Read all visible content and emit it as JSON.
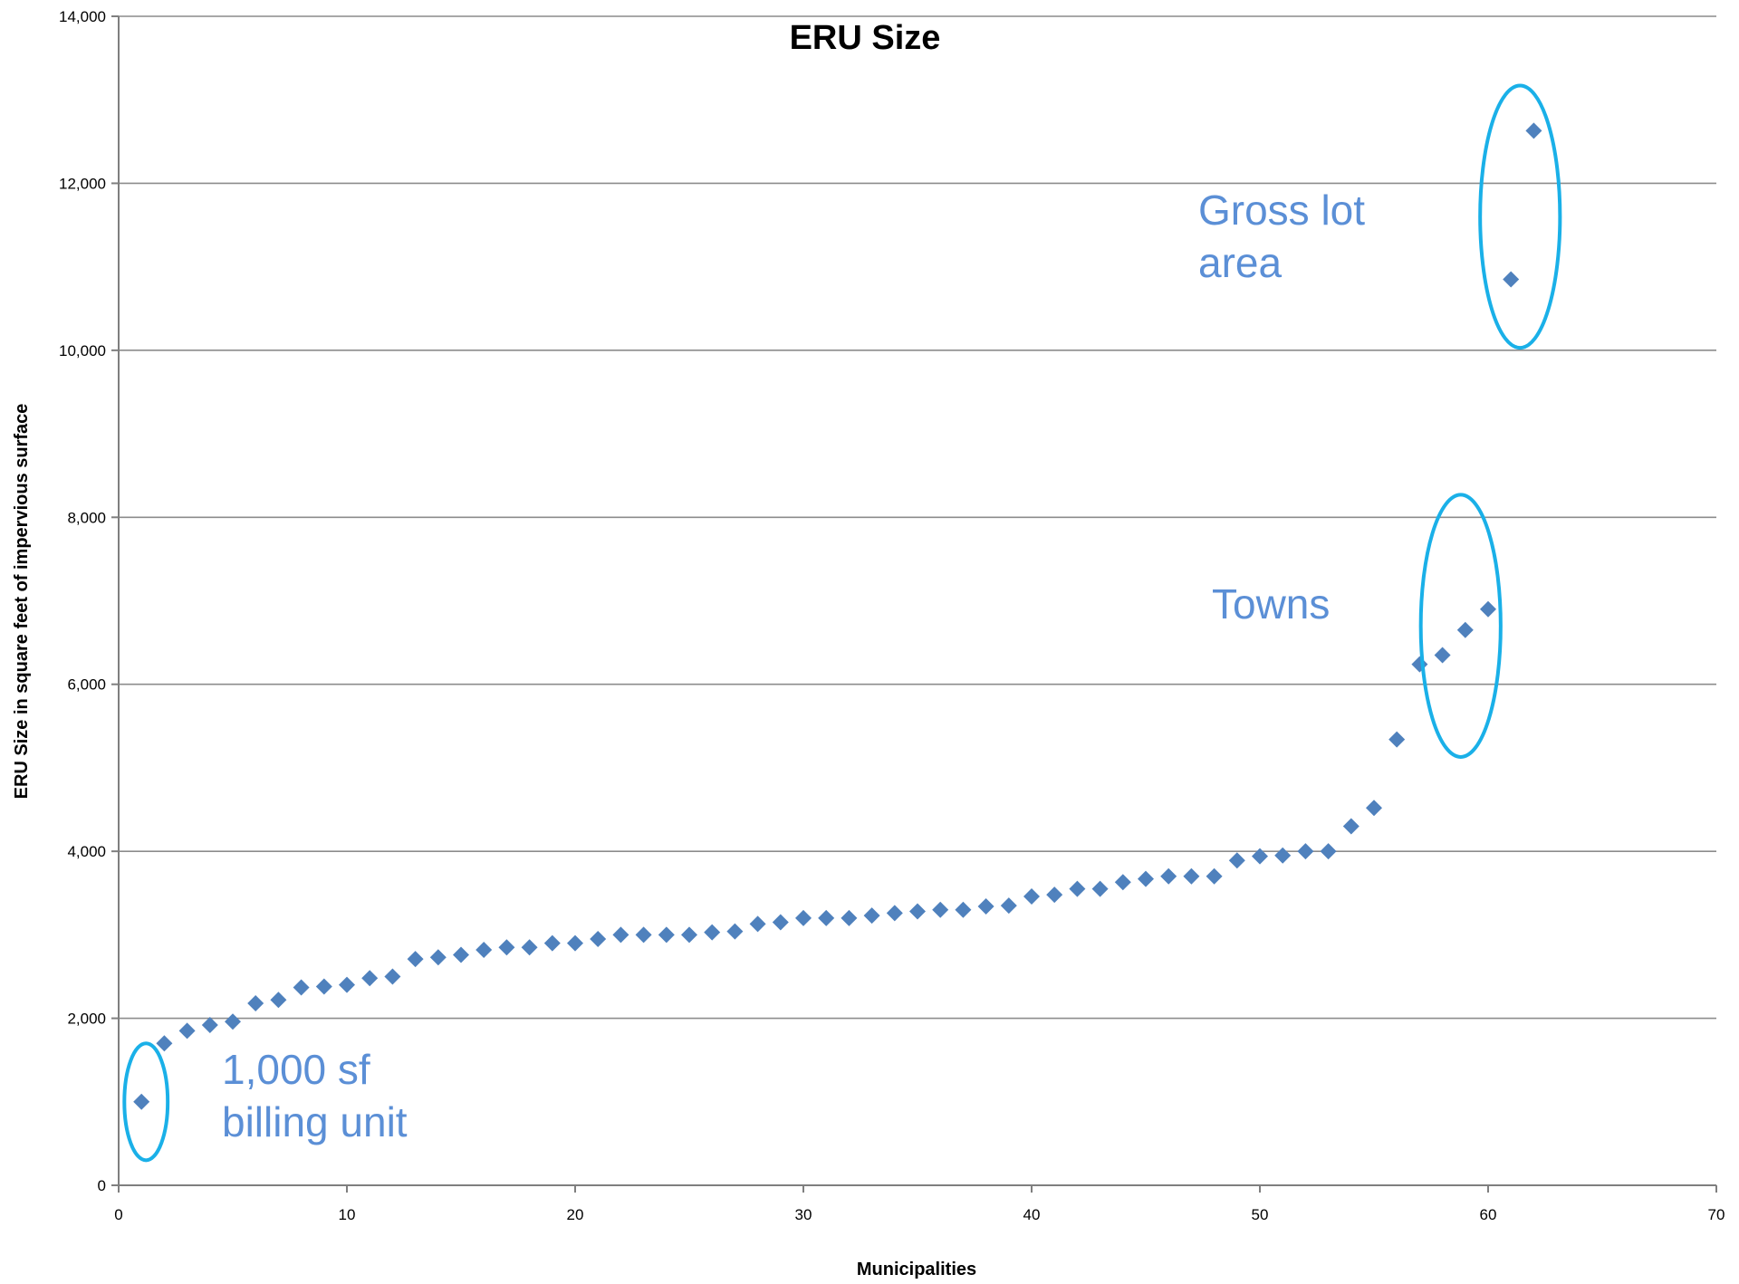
{
  "chart_data": {
    "type": "scatter",
    "title": "ERU Size",
    "xlabel": "Municipalities",
    "ylabel": "ERU Size in square feet of impervious surface",
    "xlim": [
      0,
      70
    ],
    "ylim": [
      0,
      14000
    ],
    "x_ticks": [
      0,
      10,
      20,
      30,
      40,
      50,
      60,
      70
    ],
    "y_ticks": [
      0,
      2000,
      4000,
      6000,
      8000,
      10000,
      12000,
      14000
    ],
    "x_tick_labels": [
      "0",
      "10",
      "20",
      "30",
      "40",
      "50",
      "60",
      "70"
    ],
    "y_tick_labels": [
      "0",
      "2,000",
      "4,000",
      "6,000",
      "8,000",
      "10,000",
      "12,000",
      "14,000"
    ],
    "grid": "horizontal",
    "marker": "diamond",
    "series": [
      {
        "color": "#4f81bd",
        "points": [
          [
            1,
            1000
          ],
          [
            2,
            1700
          ],
          [
            3,
            1850
          ],
          [
            4,
            1920
          ],
          [
            5,
            1960
          ],
          [
            6,
            2180
          ],
          [
            7,
            2220
          ],
          [
            8,
            2370
          ],
          [
            9,
            2380
          ],
          [
            10,
            2400
          ],
          [
            11,
            2480
          ],
          [
            12,
            2500
          ],
          [
            13,
            2710
          ],
          [
            14,
            2730
          ],
          [
            15,
            2760
          ],
          [
            16,
            2820
          ],
          [
            17,
            2850
          ],
          [
            18,
            2850
          ],
          [
            19,
            2900
          ],
          [
            20,
            2900
          ],
          [
            21,
            2950
          ],
          [
            22,
            3000
          ],
          [
            23,
            3000
          ],
          [
            24,
            3000
          ],
          [
            25,
            3000
          ],
          [
            26,
            3030
          ],
          [
            27,
            3040
          ],
          [
            28,
            3130
          ],
          [
            29,
            3150
          ],
          [
            30,
            3200
          ],
          [
            31,
            3200
          ],
          [
            32,
            3200
          ],
          [
            33,
            3230
          ],
          [
            34,
            3260
          ],
          [
            35,
            3280
          ],
          [
            36,
            3300
          ],
          [
            37,
            3300
          ],
          [
            38,
            3340
          ],
          [
            39,
            3350
          ],
          [
            40,
            3460
          ],
          [
            41,
            3480
          ],
          [
            42,
            3550
          ],
          [
            43,
            3550
          ],
          [
            44,
            3630
          ],
          [
            45,
            3670
          ],
          [
            46,
            3700
          ],
          [
            47,
            3700
          ],
          [
            48,
            3700
          ],
          [
            49,
            3890
          ],
          [
            50,
            3940
          ],
          [
            51,
            3950
          ],
          [
            52,
            4000
          ],
          [
            53,
            4000
          ],
          [
            54,
            4300
          ],
          [
            55,
            4520
          ],
          [
            56,
            5340
          ],
          [
            57,
            6240
          ],
          [
            58,
            6350
          ],
          [
            59,
            6650
          ],
          [
            60,
            6900
          ],
          [
            61,
            10850
          ],
          [
            62,
            12630
          ]
        ]
      }
    ],
    "annotations": [
      {
        "text_lines": [
          "Gross lot",
          "area"
        ],
        "circle_center": [
          61.4,
          11600
        ],
        "circle_radius_x": 1.75,
        "circle_radius_y": 1570
      },
      {
        "text_lines": [
          "Towns"
        ],
        "circle_center": [
          58.8,
          6700
        ],
        "circle_radius_x": 1.75,
        "circle_radius_y": 1570
      },
      {
        "text_lines": [
          "1,000 sf",
          "billing unit"
        ],
        "circle_center": [
          1.2,
          1000
        ],
        "circle_radius_x": 0.95,
        "circle_radius_y": 700
      }
    ],
    "annotation_color": "#5b8fd6",
    "circle_color": "#1ab0e8",
    "grid_color": "#8c8c8c",
    "axis_color": "#7f7f7f"
  }
}
